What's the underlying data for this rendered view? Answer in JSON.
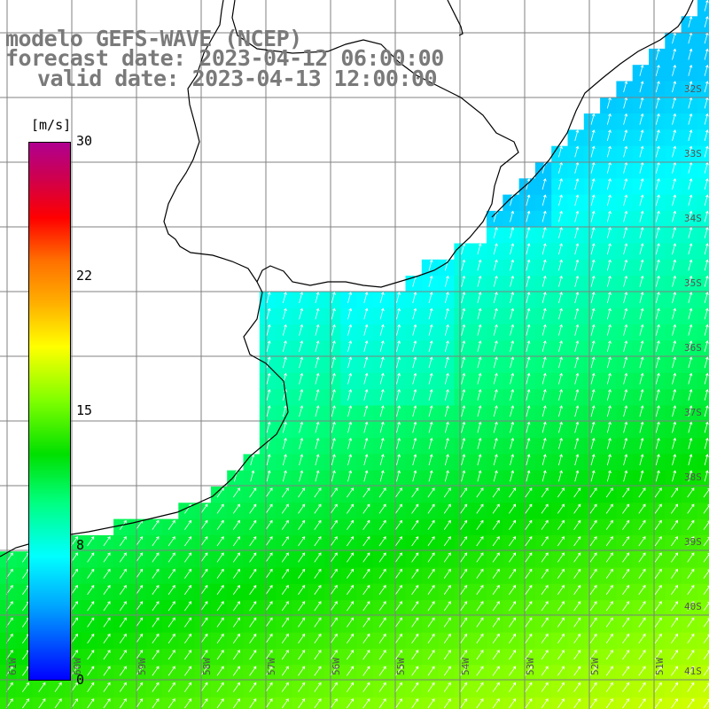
{
  "title": {
    "line1": "modelo GEFS-WAVE (NCEP)",
    "line2": "forecast date: 2023-04-12 06:00:00",
    "line3": "valid date: 2023-04-13 12:00:00"
  },
  "colorbar": {
    "unit": "[m/s]",
    "ticks": [
      {
        "label": "30",
        "value": 30
      },
      {
        "label": "22",
        "value": 22
      },
      {
        "label": "15",
        "value": 15
      },
      {
        "label": "8",
        "value": 8
      },
      {
        "label": "0",
        "value": 0
      }
    ],
    "min": 0,
    "max": 30,
    "colors": [
      "#0000ff",
      "#00a8ff",
      "#00ffff",
      "#00ff80",
      "#00e000",
      "#80ff00",
      "#ffff00",
      "#ffb000",
      "#ff7000",
      "#ff0000",
      "#d0004a",
      "#b00090"
    ]
  },
  "map": {
    "lat_labels": [
      "32S",
      "33S",
      "34S",
      "35S",
      "36S",
      "37S",
      "38S",
      "39S",
      "40S",
      "41S"
    ],
    "lon_labels": [
      "61W",
      "60W",
      "59W",
      "58W",
      "57W",
      "56W",
      "55W",
      "54W",
      "53W",
      "52W",
      "51W"
    ],
    "land_color": "#ffffff",
    "grid_color": "#808080",
    "coast_color": "#000000",
    "field": "wind speed with direction arrows"
  }
}
